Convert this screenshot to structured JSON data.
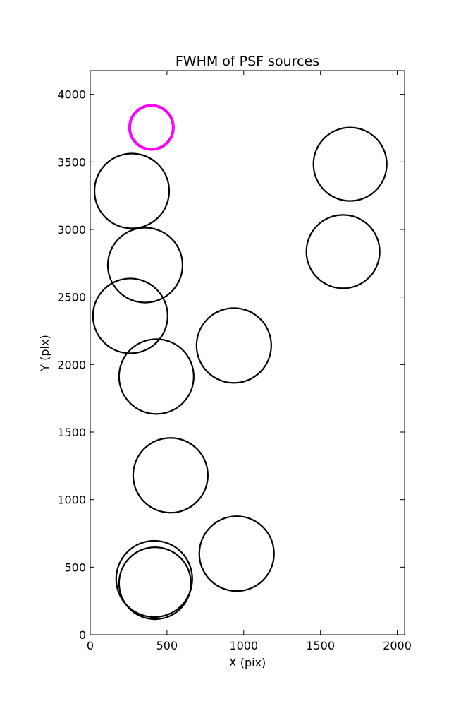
{
  "chart_data": {
    "type": "scatter",
    "title": "FWHM of PSF sources",
    "xlabel": "X (pix)",
    "ylabel": "Y (pix)",
    "x": [
      399,
      271,
      358,
      261,
      431,
      936,
      523,
      954,
      417,
      422,
      1693,
      1647
    ],
    "values": [
      3755,
      3285,
      2736,
      2360,
      1911,
      2141,
      1180,
      600,
      413,
      381,
      3483,
      2836
    ],
    "sizes": [
      31,
      53,
      53,
      53,
      53,
      53,
      53,
      53,
      54,
      51,
      52,
      52
    ],
    "colors": [
      "#ff00ff",
      "#000000",
      "#000000",
      "#000000",
      "#000000",
      "#000000",
      "#000000",
      "#000000",
      "#000000",
      "#000000",
      "#000000",
      "#000000"
    ],
    "xlim": [
      0,
      2048
    ],
    "ylim": [
      0,
      4176
    ],
    "xticks": [
      0,
      500,
      1000,
      1500,
      2000
    ],
    "yticks": [
      0,
      500,
      1000,
      1500,
      2000,
      2500,
      3000,
      3500,
      4000
    ]
  }
}
